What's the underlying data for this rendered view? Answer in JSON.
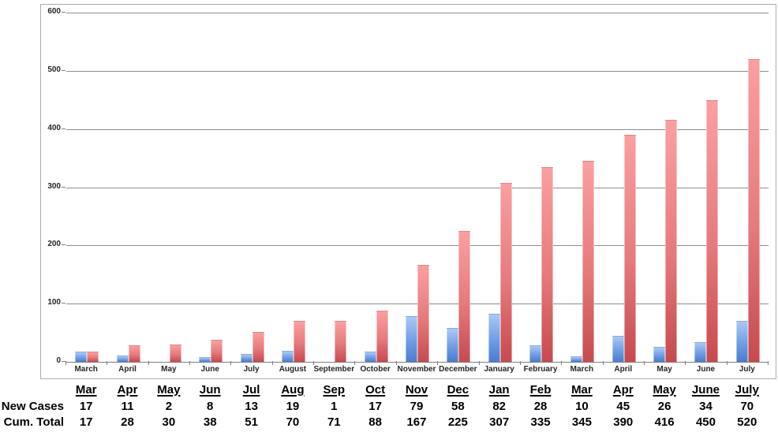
{
  "chart_data": {
    "type": "bar",
    "title": "",
    "xlabel": "",
    "ylabel": "",
    "categories": [
      "March",
      "April",
      "May",
      "June",
      "July",
      "August",
      "September",
      "October",
      "November",
      "December",
      "January",
      "February",
      "March",
      "April",
      "May",
      "June",
      "July"
    ],
    "series": [
      {
        "name": "New Cases",
        "values": [
          17,
          11,
          2,
          8,
          13,
          19,
          1,
          17,
          79,
          58,
          82,
          28,
          10,
          45,
          26,
          34,
          70
        ]
      },
      {
        "name": "Cum. Total",
        "values": [
          17,
          28,
          30,
          38,
          51,
          70,
          71,
          88,
          167,
          225,
          307,
          335,
          345,
          390,
          416,
          450,
          520
        ]
      }
    ],
    "ylim": [
      0,
      600
    ],
    "y_ticks": [
      0,
      100,
      200,
      300,
      400,
      500,
      600
    ],
    "grid": true,
    "legend_position": "none",
    "colors": {
      "new_cases_bar_top": "#a9c9f4",
      "new_cases_bar_bottom": "#4a7cce",
      "cum_total_bar_top": "#fa9fa1",
      "cum_total_bar_bottom": "#c64a4e",
      "gridline": "#8d8d8d",
      "axis": "#7f7f7f",
      "frame_border": "#ababab",
      "text": "#262626"
    }
  },
  "table": {
    "col_headers": [
      "Mar",
      "Apr",
      "May",
      "Jun",
      "Jul",
      "Aug",
      "Sep",
      "Oct",
      "Nov",
      "Dec",
      "Jan",
      "Feb",
      "Mar",
      "Apr",
      "May",
      "June",
      "July"
    ],
    "row_labels": [
      "New Cases",
      "Cum. Total"
    ]
  }
}
